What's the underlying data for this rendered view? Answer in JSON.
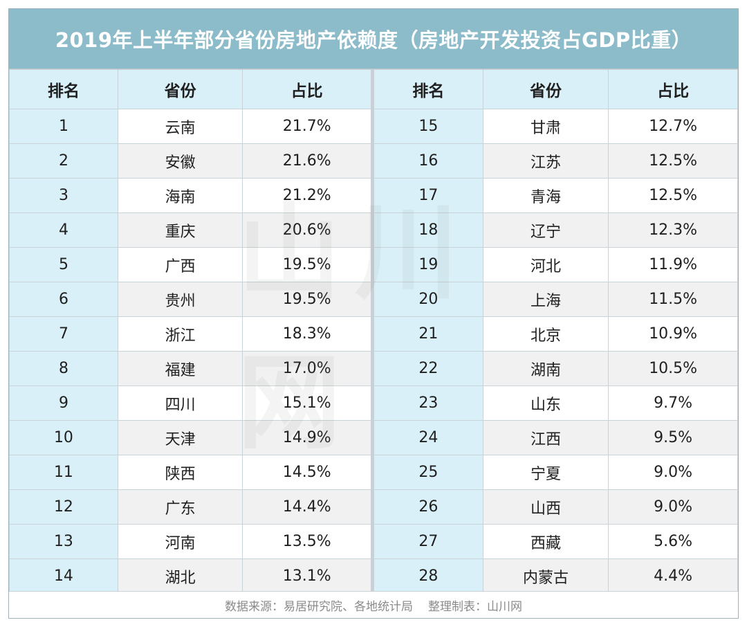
{
  "title": "2019年上半年部分省份房地产依赖度（房地产开发投资占GDP比重）",
  "headers": {
    "rank": "排名",
    "province": "省份",
    "share": "占比"
  },
  "left_rows": [
    {
      "rank": "1",
      "province": "云南",
      "share": "21.7%"
    },
    {
      "rank": "2",
      "province": "安徽",
      "share": "21.6%"
    },
    {
      "rank": "3",
      "province": "海南",
      "share": "21.2%"
    },
    {
      "rank": "4",
      "province": "重庆",
      "share": "20.6%"
    },
    {
      "rank": "5",
      "province": "广西",
      "share": "19.5%"
    },
    {
      "rank": "6",
      "province": "贵州",
      "share": "19.5%"
    },
    {
      "rank": "7",
      "province": "浙江",
      "share": "18.3%"
    },
    {
      "rank": "8",
      "province": "福建",
      "share": "17.0%"
    },
    {
      "rank": "9",
      "province": "四川",
      "share": "15.1%"
    },
    {
      "rank": "10",
      "province": "天津",
      "share": "14.9%"
    },
    {
      "rank": "11",
      "province": "陕西",
      "share": "14.5%"
    },
    {
      "rank": "12",
      "province": "广东",
      "share": "14.4%"
    },
    {
      "rank": "13",
      "province": "河南",
      "share": "13.5%"
    },
    {
      "rank": "14",
      "province": "湖北",
      "share": "13.1%"
    }
  ],
  "right_rows": [
    {
      "rank": "15",
      "province": "甘肃",
      "share": "12.7%"
    },
    {
      "rank": "16",
      "province": "江苏",
      "share": "12.5%"
    },
    {
      "rank": "17",
      "province": "青海",
      "share": "12.5%"
    },
    {
      "rank": "18",
      "province": "辽宁",
      "share": "12.3%"
    },
    {
      "rank": "19",
      "province": "河北",
      "share": "11.9%"
    },
    {
      "rank": "20",
      "province": "上海",
      "share": "11.5%"
    },
    {
      "rank": "21",
      "province": "北京",
      "share": "10.9%"
    },
    {
      "rank": "22",
      "province": "湖南",
      "share": "10.5%"
    },
    {
      "rank": "23",
      "province": "山东",
      "share": "9.7%"
    },
    {
      "rank": "24",
      "province": "江西",
      "share": "9.5%"
    },
    {
      "rank": "25",
      "province": "宁夏",
      "share": "9.0%"
    },
    {
      "rank": "26",
      "province": "山西",
      "share": "9.0%"
    },
    {
      "rank": "27",
      "province": "西藏",
      "share": "5.6%"
    },
    {
      "rank": "28",
      "province": "内蒙古",
      "share": "4.4%"
    }
  ],
  "footer": {
    "source": "数据来源：易居研究院、各地统计局",
    "producer": "整理制表：山川网"
  },
  "watermark": "山川网",
  "colors": {
    "title_bg": "#8cbcc9",
    "header_bg": "#daf0f8",
    "rank_bg": "#daf0f8",
    "stripe_bg": "#f1f1f1"
  }
}
